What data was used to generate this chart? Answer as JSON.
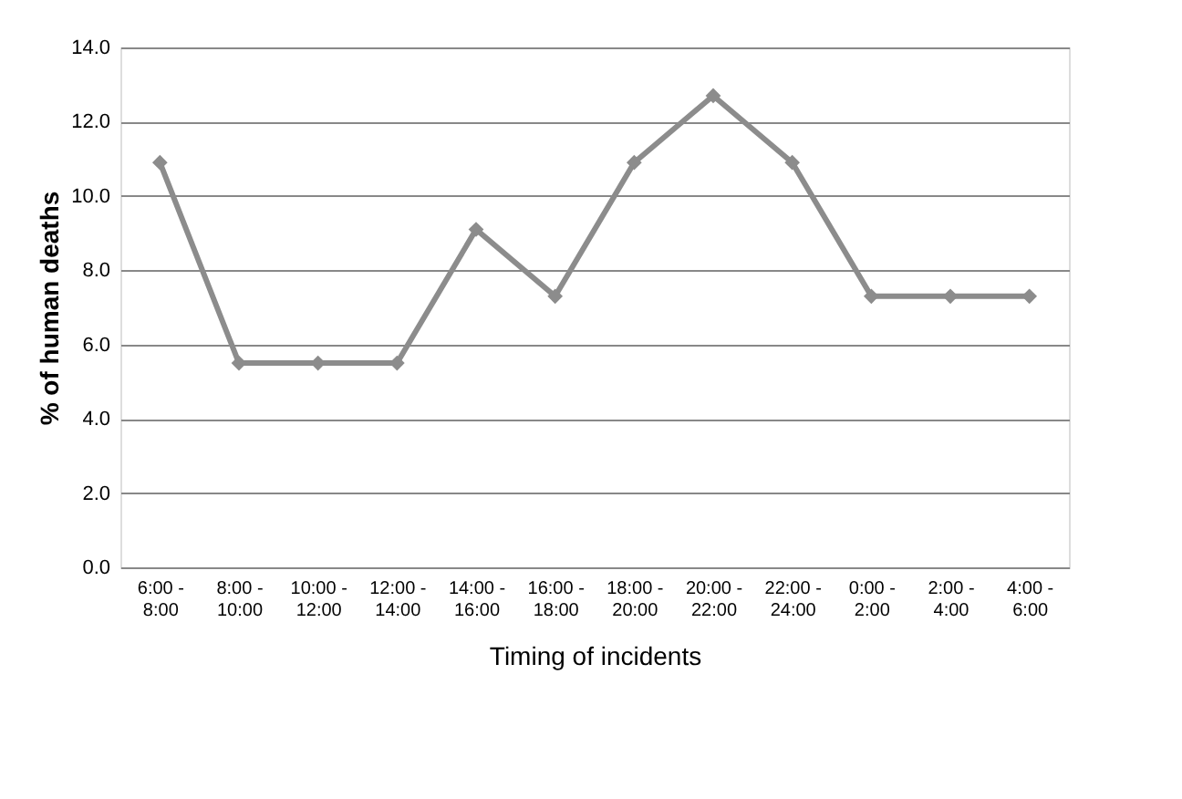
{
  "chart_data": {
    "type": "line",
    "xlabel": "Timing of incidents",
    "ylabel": "% of human deaths",
    "categories": [
      "6:00 - 8:00",
      "8:00 - 10:00",
      "10:00 - 12:00",
      "12:00 - 14:00",
      "14:00 - 16:00",
      "16:00 - 18:00",
      "18:00 - 20:00",
      "20:00 - 22:00",
      "22:00 - 24:00",
      "0:00 - 2:00",
      "2:00 - 4:00",
      "4:00 - 6:00"
    ],
    "series": [
      {
        "color": "#8c8c8c",
        "values": [
          10.9,
          5.5,
          5.5,
          5.5,
          9.1,
          7.3,
          10.9,
          12.7,
          10.9,
          7.3,
          7.3,
          7.3
        ]
      }
    ],
    "ylim": [
      0,
      14
    ],
    "yticks": [
      {
        "value": 0,
        "label": "0.0"
      },
      {
        "value": 2,
        "label": "2.0"
      },
      {
        "value": 4,
        "label": "4.0"
      },
      {
        "value": 6,
        "label": "6.0"
      },
      {
        "value": 8,
        "label": "8.0"
      },
      {
        "value": 10,
        "label": "10.0"
      },
      {
        "value": 12,
        "label": "12.0"
      },
      {
        "value": 14,
        "label": "14.0"
      }
    ],
    "grid": "y",
    "legend": false,
    "marker": "diamond",
    "line_style": "solid"
  }
}
